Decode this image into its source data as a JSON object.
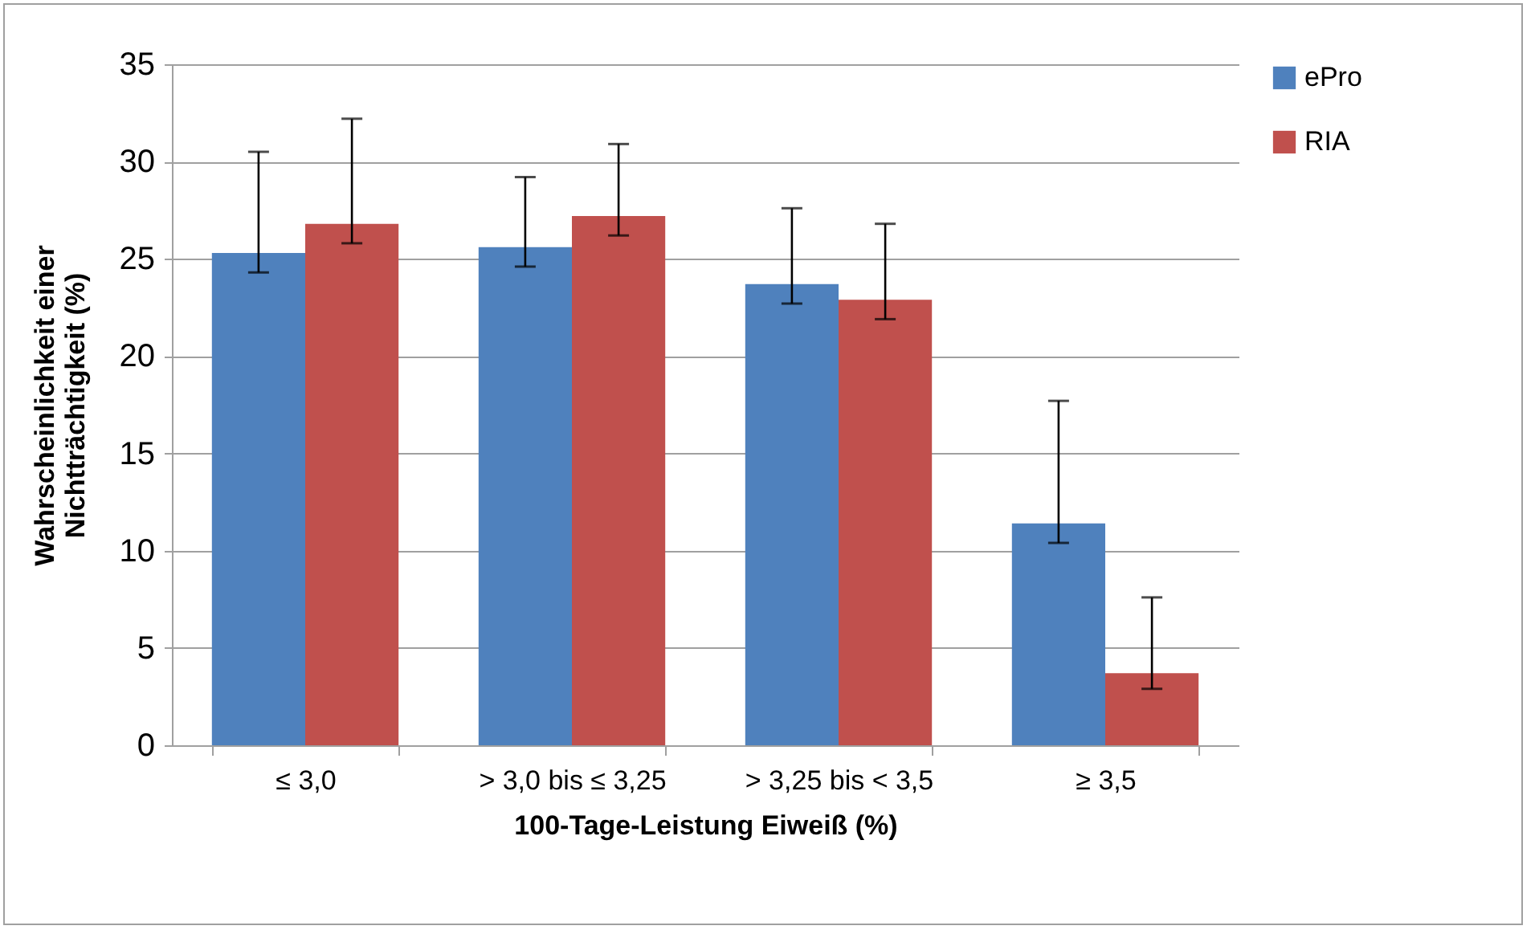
{
  "chart_data": {
    "type": "bar",
    "xlabel": "100-Tage-Leistung Eiweiß (%)",
    "ylabel": "Wahrscheinlichkeit einer Nichtträchtigkeit (%)",
    "categories": [
      "≤ 3,0",
      "> 3,0 bis ≤ 3,25",
      "> 3,25 bis < 3,5",
      "≥ 3,5"
    ],
    "series": [
      {
        "name": "ePro",
        "color": "#4f81bd",
        "values": [
          25.3,
          25.6,
          23.7,
          11.4
        ],
        "errors": [
          [
            24.3,
            30.5
          ],
          [
            24.6,
            29.2
          ],
          [
            22.7,
            27.6
          ],
          [
            10.4,
            17.7
          ]
        ]
      },
      {
        "name": "RIA",
        "color": "#c0504d",
        "values": [
          26.8,
          27.2,
          22.9,
          3.7
        ],
        "errors": [
          [
            25.8,
            32.2
          ],
          [
            26.2,
            30.9
          ],
          [
            21.9,
            26.8
          ],
          [
            2.9,
            7.6
          ]
        ]
      }
    ],
    "ylim": [
      0,
      35
    ],
    "yticks": [
      0,
      5,
      10,
      15,
      20,
      25,
      30,
      35
    ],
    "grid": "y",
    "legend": "right"
  }
}
